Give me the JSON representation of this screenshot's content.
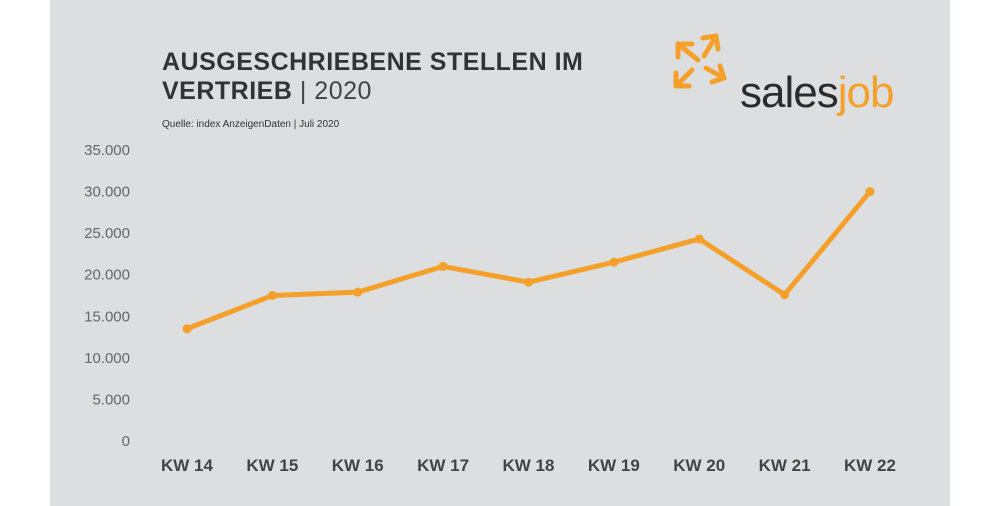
{
  "header": {
    "title_line1": "AUSGESCHRIEBENE STELLEN IM",
    "title_line2_bold": "VERTRIEB",
    "title_line2_rest": " | 2020",
    "source": "Quelle: index AnzeigenDaten  |  Juli 2020"
  },
  "logo": {
    "text_main": "sales",
    "text_accent": "job",
    "icon": "arrows-outward-icon"
  },
  "colors": {
    "line": "#f5a02a",
    "background": "#dcdee0",
    "text": "#333333",
    "axis_text": "#666666"
  },
  "chart_data": {
    "type": "line",
    "title": "AUSGESCHRIEBENE STELLEN IM VERTRIEB | 2020",
    "categories": [
      "KW 14",
      "KW 15",
      "KW 16",
      "KW 17",
      "KW 18",
      "KW 19",
      "KW 20",
      "KW 21",
      "KW 22"
    ],
    "values": [
      13500,
      17500,
      17900,
      21000,
      19100,
      21500,
      24300,
      17600,
      30000
    ],
    "ylim": [
      0,
      35000
    ],
    "yticks": [
      0,
      5000,
      10000,
      15000,
      20000,
      25000,
      30000,
      35000
    ],
    "ytick_labels": [
      "0",
      "5.000",
      "10.000",
      "15.000",
      "20.000",
      "25.000",
      "30.000",
      "35.000"
    ],
    "grid": false,
    "legend": "none"
  }
}
